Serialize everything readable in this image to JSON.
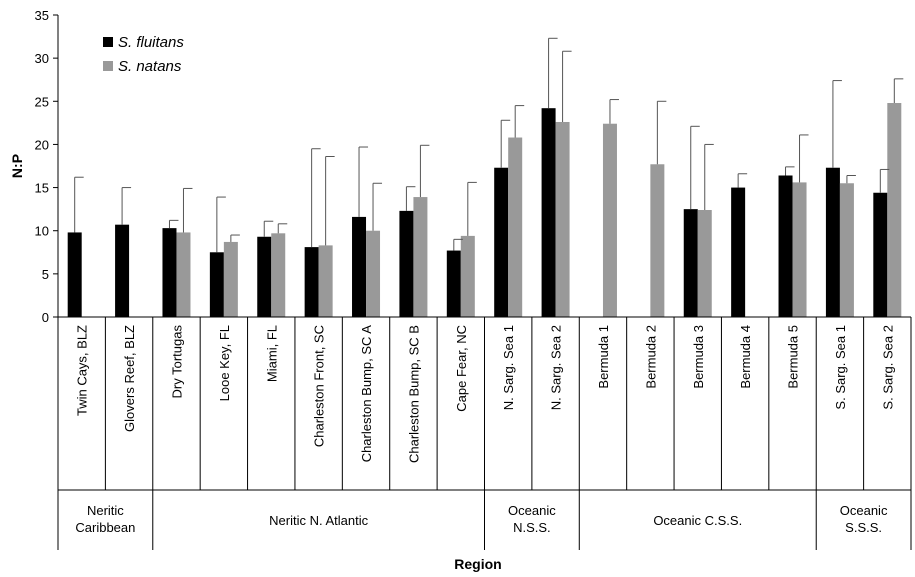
{
  "chart_data": {
    "type": "bar",
    "title": "",
    "xlabel": "Region",
    "ylabel": "N:P",
    "ylim": [
      0,
      35
    ],
    "yticks": [
      0,
      5,
      10,
      15,
      20,
      25,
      30,
      35
    ],
    "grid": false,
    "legend_position": "top-left",
    "categories": [
      "Twin Cays, BLZ",
      "Glovers Reef, BLZ",
      "Dry Tortugas",
      "Looe Key, FL",
      "Miami, FL",
      "Charleston Front, SC",
      "Charleston Bump, SC A",
      "Charleston Bump, SC B",
      "Cape Fear, NC",
      "N. Sarg. Sea 1",
      "N. Sarg. Sea 2",
      "Bermuda 1",
      "Bermuda 2",
      "Bermuda 3",
      "Bermuda 4",
      "Bermuda 5",
      "S. Sarg. Sea 1",
      "S. Sarg. Sea 2"
    ],
    "groups": [
      {
        "label": [
          "Neritic",
          "Caribbean"
        ],
        "start": 0,
        "end": 1
      },
      {
        "label": [
          "Neritic N. Atlantic"
        ],
        "start": 2,
        "end": 8
      },
      {
        "label": [
          "Oceanic",
          "N.S.S."
        ],
        "start": 9,
        "end": 10
      },
      {
        "label": [
          "Oceanic C.S.S."
        ],
        "start": 11,
        "end": 15
      },
      {
        "label": [
          "Oceanic",
          "S.S.S."
        ],
        "start": 16,
        "end": 17
      }
    ],
    "series": [
      {
        "name": "S. fluitans",
        "color": "#000000",
        "values": [
          9.8,
          10.7,
          10.3,
          7.5,
          9.3,
          8.1,
          11.6,
          12.3,
          7.7,
          17.3,
          24.2,
          null,
          null,
          12.5,
          15.0,
          16.4,
          17.3,
          14.4
        ],
        "errors": [
          6.4,
          4.3,
          0.9,
          6.4,
          1.8,
          11.4,
          8.1,
          2.8,
          1.3,
          5.5,
          8.1,
          null,
          null,
          9.6,
          1.6,
          1.0,
          10.1,
          2.7
        ]
      },
      {
        "name": "S. natans",
        "color": "#999999",
        "values": [
          null,
          null,
          9.8,
          8.7,
          9.7,
          8.3,
          10.0,
          13.9,
          9.4,
          20.8,
          22.6,
          22.4,
          17.7,
          12.4,
          null,
          15.6,
          15.5,
          24.8
        ],
        "errors": [
          null,
          null,
          5.1,
          0.8,
          1.1,
          10.3,
          5.5,
          6.0,
          6.2,
          3.7,
          8.2,
          2.8,
          7.3,
          7.6,
          null,
          5.5,
          0.9,
          2.8
        ]
      }
    ]
  }
}
